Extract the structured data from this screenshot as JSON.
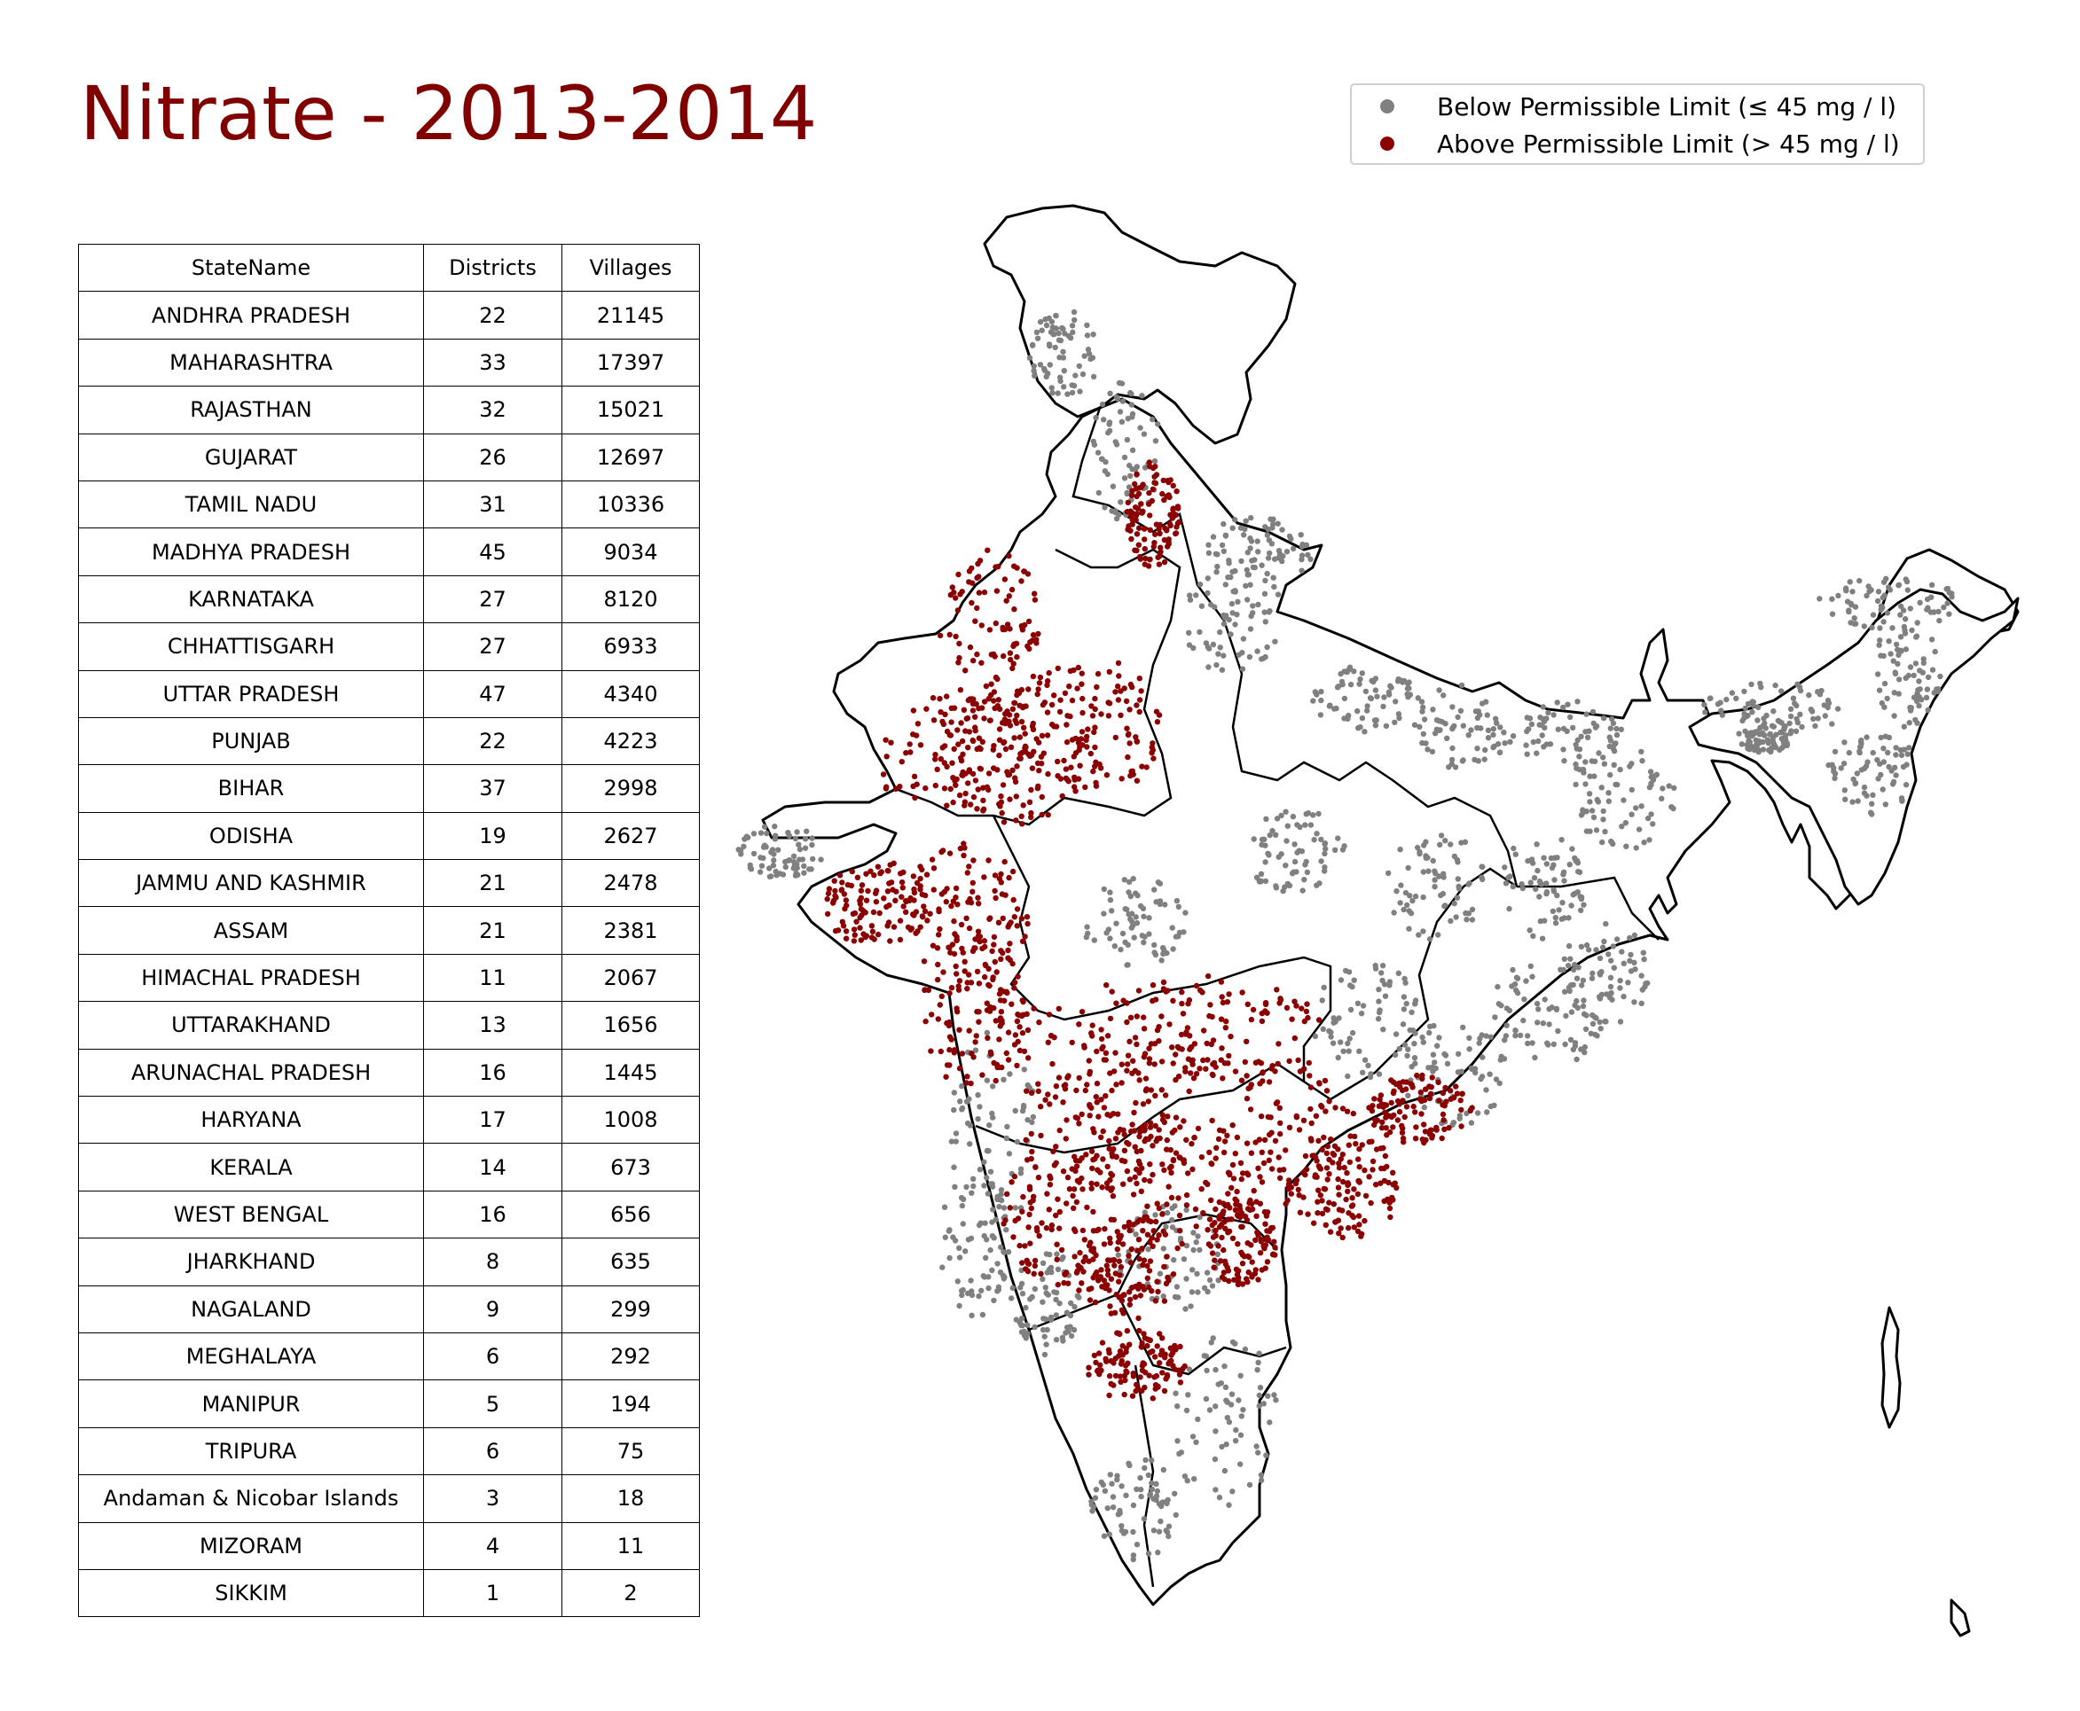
{
  "title": "Nitrate - 2013-2014",
  "legend": {
    "items": [
      {
        "label": "Below Permissible Limit (≤ 45 mg / l)",
        "color": "#808080"
      },
      {
        "label": "Above Permissible Limit (> 45 mg / l)",
        "color": "#8b0000"
      }
    ]
  },
  "table": {
    "headers": [
      "StateName",
      "Districts",
      "Villages"
    ],
    "rows": [
      [
        "ANDHRA PRADESH",
        "22",
        "21145"
      ],
      [
        "MAHARASHTRA",
        "33",
        "17397"
      ],
      [
        "RAJASTHAN",
        "32",
        "15021"
      ],
      [
        "GUJARAT",
        "26",
        "12697"
      ],
      [
        "TAMIL NADU",
        "31",
        "10336"
      ],
      [
        "MADHYA PRADESH",
        "45",
        "9034"
      ],
      [
        "KARNATAKA",
        "27",
        "8120"
      ],
      [
        "CHHATTISGARH",
        "27",
        "6933"
      ],
      [
        "UTTAR PRADESH",
        "47",
        "4340"
      ],
      [
        "PUNJAB",
        "22",
        "4223"
      ],
      [
        "BIHAR",
        "37",
        "2998"
      ],
      [
        "ODISHA",
        "19",
        "2627"
      ],
      [
        "JAMMU AND KASHMIR",
        "21",
        "2478"
      ],
      [
        "ASSAM",
        "21",
        "2381"
      ],
      [
        "HIMACHAL PRADESH",
        "11",
        "2067"
      ],
      [
        "UTTARAKHAND",
        "13",
        "1656"
      ],
      [
        "ARUNACHAL PRADESH",
        "16",
        "1445"
      ],
      [
        "HARYANA",
        "17",
        "1008"
      ],
      [
        "KERALA",
        "14",
        "673"
      ],
      [
        "WEST BENGAL",
        "16",
        "656"
      ],
      [
        "JHARKHAND",
        "8",
        "635"
      ],
      [
        "NAGALAND",
        "9",
        "299"
      ],
      [
        "MEGHALAYA",
        "6",
        "292"
      ],
      [
        "MANIPUR",
        "5",
        "194"
      ],
      [
        "TRIPURA",
        "6",
        "75"
      ],
      [
        "Andaman & Nicobar Islands",
        "3",
        "18"
      ],
      [
        "MIZORAM",
        "4",
        "11"
      ],
      [
        "SIKKIM",
        "1",
        "2"
      ]
    ]
  },
  "colors": {
    "title": "#800000",
    "below": "#808080",
    "above": "#8b0000",
    "border": "#000000"
  }
}
